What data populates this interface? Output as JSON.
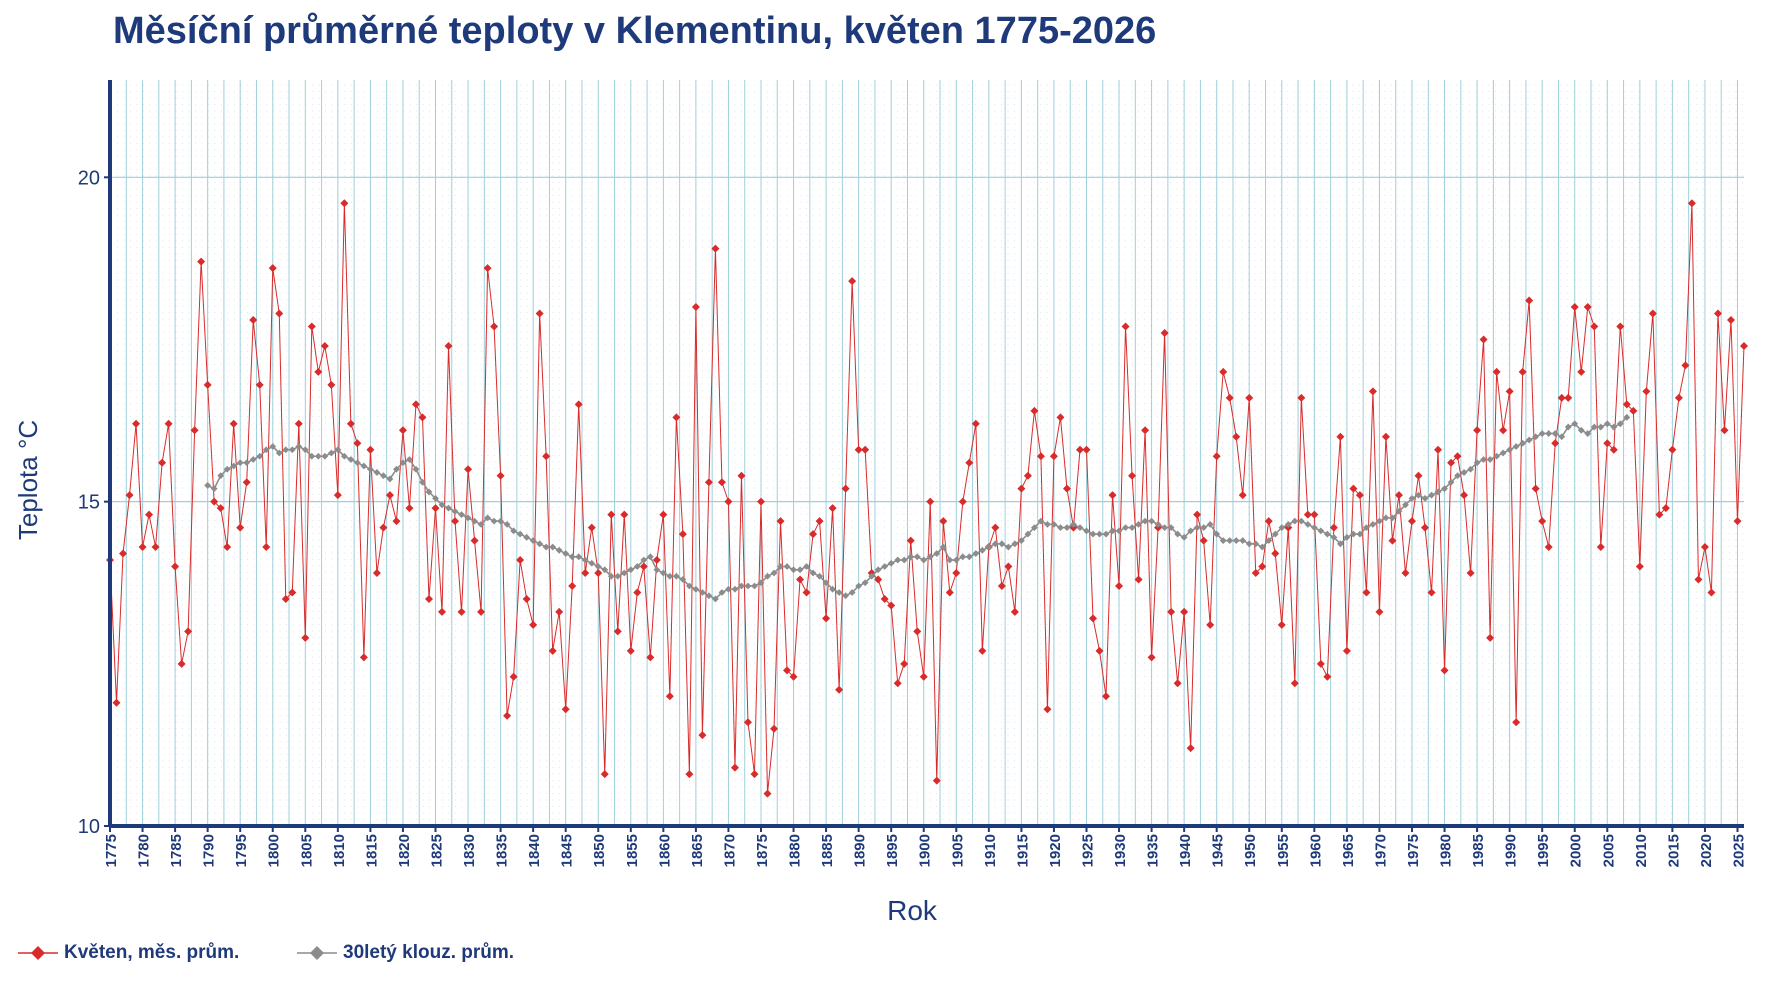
{
  "chart_data": {
    "type": "line",
    "title": "Měsíční průměrné teploty v Klementinu, květen 1775-2026",
    "xlabel": "Rok",
    "ylabel": "Teplota  °C",
    "xlim": [
      1775,
      2026
    ],
    "ylim": [
      10,
      21.5
    ],
    "y_ticks": [
      10,
      15,
      20
    ],
    "x_ticks": [
      1775,
      1780,
      1785,
      1790,
      1795,
      1800,
      1805,
      1810,
      1815,
      1820,
      1825,
      1830,
      1835,
      1840,
      1845,
      1850,
      1855,
      1860,
      1865,
      1870,
      1875,
      1880,
      1885,
      1890,
      1895,
      1900,
      1905,
      1910,
      1915,
      1920,
      1925,
      1930,
      1935,
      1940,
      1945,
      1950,
      1955,
      1960,
      1965,
      1970,
      1975,
      1980,
      1985,
      1990,
      1995,
      2000,
      2005,
      2010,
      2015,
      2020,
      2025
    ],
    "grid": true,
    "legend_position": "bottom-left",
    "series": [
      {
        "name": "Květen, měs. prům.",
        "color": "#d92b2b",
        "marker": "diamond",
        "x_start": 1775,
        "values": [
          14.1,
          11.9,
          14.2,
          15.1,
          16.2,
          14.3,
          14.8,
          14.3,
          15.6,
          16.2,
          14.0,
          12.5,
          13.0,
          16.1,
          18.7,
          16.8,
          15.0,
          14.9,
          14.3,
          16.2,
          14.6,
          15.3,
          17.8,
          16.8,
          14.3,
          18.6,
          17.9,
          13.5,
          13.6,
          16.2,
          12.9,
          17.7,
          17.0,
          17.4,
          16.8,
          15.1,
          19.6,
          16.2,
          15.9,
          12.6,
          15.8,
          13.9,
          14.6,
          15.1,
          14.7,
          16.1,
          14.9,
          16.5,
          16.3,
          13.5,
          14.9,
          13.3,
          17.4,
          14.7,
          13.3,
          15.5,
          14.4,
          13.3,
          18.6,
          17.7,
          15.4,
          11.7,
          12.3,
          14.1,
          13.5,
          13.1,
          17.9,
          15.7,
          12.7,
          13.3,
          11.8,
          13.7,
          16.5,
          13.9,
          14.6,
          13.9,
          10.8,
          14.8,
          13.0,
          14.8,
          12.7,
          13.6,
          14.0,
          12.6,
          14.1,
          14.8,
          12.0,
          16.3,
          14.5,
          10.8,
          18.0,
          11.4,
          15.3,
          18.9,
          15.3,
          15.0,
          10.9,
          15.4,
          11.6,
          10.8,
          15.0,
          10.5,
          11.5,
          14.7,
          12.4,
          12.3,
          13.8,
          13.6,
          14.5,
          14.7,
          13.2,
          14.9,
          12.1,
          15.2,
          18.4,
          15.8,
          15.8,
          13.9,
          13.8,
          13.5,
          13.4,
          12.2,
          12.5,
          14.4,
          13.0,
          12.3,
          15.0,
          10.7,
          14.7,
          13.6,
          13.9,
          15.0,
          15.6,
          16.2,
          12.7,
          14.3,
          14.6,
          13.7,
          14.0,
          13.3,
          15.2,
          15.4,
          16.4,
          15.7,
          11.8,
          15.7,
          16.3,
          15.2,
          14.6,
          15.8,
          15.8,
          13.2,
          12.7,
          12.0,
          15.1,
          13.7,
          17.7,
          15.4,
          13.8,
          16.1,
          12.6,
          14.6,
          17.6,
          13.3,
          12.2,
          13.3,
          11.2,
          14.8,
          14.4,
          13.1,
          15.7,
          17.0,
          16.6,
          16.0,
          15.1,
          16.6,
          13.9,
          14.0,
          14.7,
          14.2,
          13.1,
          14.6,
          12.2,
          16.6,
          14.8,
          14.8,
          12.5,
          12.3,
          14.6,
          16.0,
          12.7,
          15.2,
          15.1,
          13.6,
          16.7,
          13.3,
          16.0,
          14.4,
          15.1,
          13.9,
          14.7,
          15.4,
          14.6,
          13.6,
          15.8,
          12.4,
          15.6,
          15.7,
          15.1,
          13.9,
          16.1,
          17.5,
          12.9,
          17.0,
          16.1,
          16.7,
          11.6,
          17.0,
          18.1,
          15.2,
          14.7,
          14.3,
          15.9,
          16.6,
          16.6,
          18.0,
          17.0,
          18.0,
          17.7,
          14.3,
          15.9,
          15.8,
          17.7,
          16.5,
          16.4,
          14.0,
          16.7,
          17.9,
          14.8,
          14.9,
          15.8,
          16.6,
          17.1,
          19.6,
          13.8,
          14.3,
          13.6,
          17.9,
          16.1,
          17.8,
          14.7,
          17.4
        ]
      },
      {
        "name": "30letý klouz. prům.",
        "color": "#8c8c8c",
        "marker": "diamond",
        "x_start": 1790,
        "values": [
          15.25,
          15.2,
          15.4,
          15.5,
          15.55,
          15.6,
          15.6,
          15.65,
          15.7,
          15.8,
          15.85,
          15.75,
          15.8,
          15.8,
          15.85,
          15.8,
          15.7,
          15.7,
          15.7,
          15.75,
          15.8,
          15.7,
          15.65,
          15.6,
          15.55,
          15.5,
          15.45,
          15.4,
          15.35,
          15.5,
          15.6,
          15.65,
          15.5,
          15.3,
          15.15,
          15.05,
          14.95,
          14.9,
          14.85,
          14.8,
          14.75,
          14.7,
          14.65,
          14.75,
          14.7,
          14.7,
          14.65,
          14.55,
          14.5,
          14.45,
          14.4,
          14.35,
          14.3,
          14.3,
          14.25,
          14.2,
          14.15,
          14.15,
          14.1,
          14.05,
          14.0,
          13.95,
          13.85,
          13.85,
          13.9,
          13.95,
          14.0,
          14.1,
          14.15,
          13.95,
          13.9,
          13.85,
          13.85,
          13.8,
          13.7,
          13.65,
          13.6,
          13.55,
          13.5,
          13.6,
          13.65,
          13.65,
          13.7,
          13.7,
          13.7,
          13.75,
          13.85,
          13.9,
          14.0,
          14.0,
          13.95,
          13.95,
          14.0,
          13.9,
          13.85,
          13.75,
          13.65,
          13.6,
          13.55,
          13.6,
          13.7,
          13.75,
          13.85,
          13.95,
          14.0,
          14.05,
          14.1,
          14.1,
          14.15,
          14.15,
          14.1,
          14.15,
          14.2,
          14.3,
          14.1,
          14.1,
          14.15,
          14.15,
          14.2,
          14.25,
          14.3,
          14.35,
          14.35,
          14.3,
          14.35,
          14.4,
          14.5,
          14.6,
          14.7,
          14.65,
          14.65,
          14.6,
          14.6,
          14.65,
          14.6,
          14.55,
          14.5,
          14.5,
          14.5,
          14.55,
          14.55,
          14.6,
          14.6,
          14.65,
          14.7,
          14.7,
          14.65,
          14.6,
          14.6,
          14.5,
          14.45,
          14.55,
          14.6,
          14.6,
          14.65,
          14.5,
          14.4,
          14.4,
          14.4,
          14.4,
          14.35,
          14.35,
          14.3,
          14.4,
          14.5,
          14.6,
          14.65,
          14.7,
          14.7,
          14.65,
          14.6,
          14.55,
          14.5,
          14.45,
          14.35,
          14.45,
          14.5,
          14.5,
          14.6,
          14.65,
          14.7,
          14.75,
          14.75,
          14.85,
          14.95,
          15.05,
          15.1,
          15.05,
          15.1,
          15.15,
          15.2,
          15.3,
          15.4,
          15.45,
          15.5,
          15.6,
          15.65,
          15.65,
          15.7,
          15.75,
          15.8,
          15.85,
          15.9,
          15.95,
          16.0,
          16.05,
          16.05,
          16.05,
          16.0,
          16.15,
          16.2,
          16.1,
          16.05,
          16.15,
          16.15,
          16.2,
          16.15,
          16.2,
          16.3
        ]
      }
    ]
  }
}
